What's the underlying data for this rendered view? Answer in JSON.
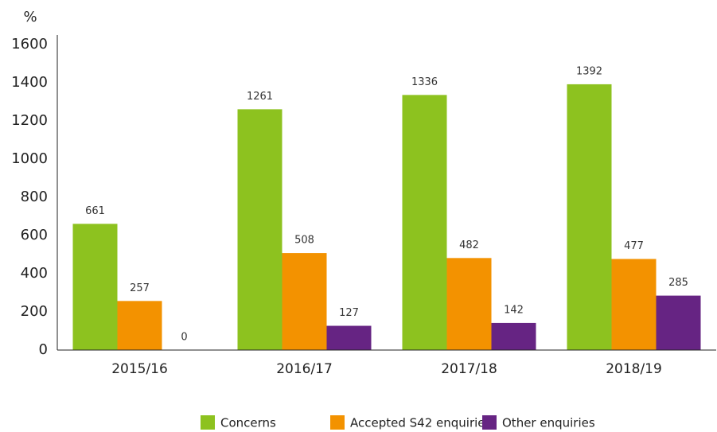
{
  "chart_data": {
    "type": "bar",
    "ylabel": "%",
    "categories": [
      "2015/16",
      "2016/17",
      "2017/18",
      "2018/19"
    ],
    "series": [
      {
        "name": "Concerns",
        "color": "#8dc21f",
        "values": [
          661,
          1261,
          1336,
          1392
        ]
      },
      {
        "name": "Accepted S42 enquiries",
        "color": "#f39200",
        "values": [
          257,
          508,
          482,
          477
        ]
      },
      {
        "name": "Other enquiries",
        "color": "#662483",
        "values": [
          0,
          127,
          142,
          285
        ]
      }
    ],
    "ylim": [
      0,
      1600
    ],
    "yticks": [
      0,
      200,
      400,
      600,
      800,
      1000,
      1200,
      1400,
      1600
    ],
    "grid": false
  }
}
